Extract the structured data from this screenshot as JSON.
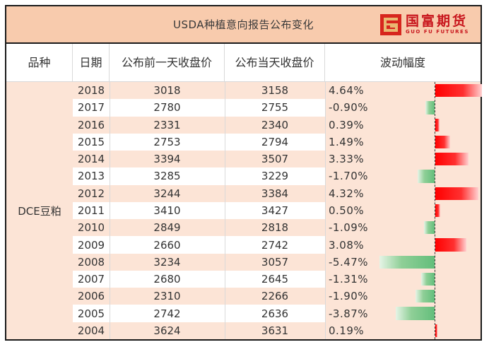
{
  "title": "USDA种植意向报告公布变化",
  "logo": {
    "cn": "国富期货",
    "en": "GUO  FU  FUTURES",
    "colors": {
      "primary": "#D7261E",
      "secondary": "#E9B872"
    }
  },
  "columns": [
    "品种",
    "日期",
    "公布前一天收盘价",
    "公布当天收盘价",
    "波动幅度"
  ],
  "variety": "DCE豆粕",
  "colors": {
    "title_bg": "#F8CBAD",
    "row_bg": "#FCE4D6",
    "positive_bar": "#FF0000",
    "negative_bar": "#63BE7B"
  },
  "rows": [
    {
      "year": "2018",
      "prev_close": "3018",
      "close": "3158",
      "change": "4.64%",
      "value": 4.64
    },
    {
      "year": "2017",
      "prev_close": "2780",
      "close": "2755",
      "change": "-0.90%",
      "value": -0.9
    },
    {
      "year": "2016",
      "prev_close": "2331",
      "close": "2340",
      "change": "0.39%",
      "value": 0.39
    },
    {
      "year": "2015",
      "prev_close": "2753",
      "close": "2794",
      "change": "1.49%",
      "value": 1.49
    },
    {
      "year": "2014",
      "prev_close": "3394",
      "close": "3507",
      "change": "3.33%",
      "value": 3.33
    },
    {
      "year": "2013",
      "prev_close": "3285",
      "close": "3229",
      "change": "-1.70%",
      "value": -1.7
    },
    {
      "year": "2012",
      "prev_close": "3244",
      "close": "3384",
      "change": "4.32%",
      "value": 4.32
    },
    {
      "year": "2011",
      "prev_close": "3410",
      "close": "3427",
      "change": "0.50%",
      "value": 0.5
    },
    {
      "year": "2010",
      "prev_close": "2849",
      "close": "2818",
      "change": "-1.09%",
      "value": -1.09
    },
    {
      "year": "2009",
      "prev_close": "2660",
      "close": "2742",
      "change": "3.08%",
      "value": 3.08
    },
    {
      "year": "2008",
      "prev_close": "3234",
      "close": "3057",
      "change": "-5.47%",
      "value": -5.47
    },
    {
      "year": "2007",
      "prev_close": "2680",
      "close": "2645",
      "change": "-1.31%",
      "value": -1.31
    },
    {
      "year": "2006",
      "prev_close": "2310",
      "close": "2266",
      "change": "-1.90%",
      "value": -1.9
    },
    {
      "year": "2005",
      "prev_close": "2742",
      "close": "2636",
      "change": "-3.87%",
      "value": -3.87
    },
    {
      "year": "2004",
      "prev_close": "3624",
      "close": "3631",
      "change": "0.19%",
      "value": 0.19
    }
  ]
}
